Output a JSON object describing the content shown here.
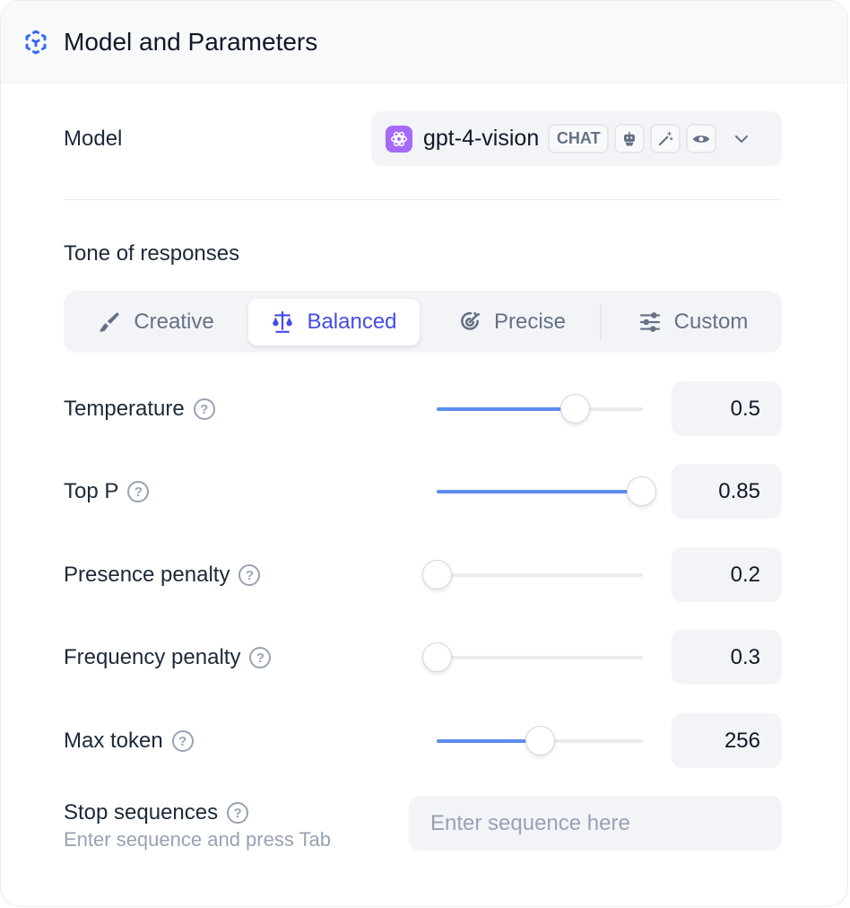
{
  "header": {
    "title": "Model and Parameters",
    "icon": "cube-dashed-icon",
    "accent": "#2f6bf5"
  },
  "model": {
    "label": "Model",
    "name": "gpt-4-vision",
    "type_badge": "CHAT",
    "capabilities": [
      "robot-icon",
      "magic-wand-icon",
      "eye-icon"
    ],
    "logo_color": "#a56af7"
  },
  "tone": {
    "label": "Tone of responses",
    "options": [
      {
        "label": "Creative",
        "icon": "brush-icon"
      },
      {
        "label": "Balanced",
        "icon": "scale-icon"
      },
      {
        "label": "Precise",
        "icon": "target-icon"
      },
      {
        "label": "Custom",
        "icon": "sliders-icon"
      }
    ],
    "selected": "Balanced"
  },
  "params": [
    {
      "label": "Temperature",
      "value": "0.5",
      "slider_fraction": 0.67
    },
    {
      "label": "Top P",
      "value": "0.85",
      "slider_fraction": 0.99
    },
    {
      "label": "Presence penalty",
      "value": "0.2",
      "slider_fraction": 0
    },
    {
      "label": "Frequency penalty",
      "value": "0.3",
      "slider_fraction": 0
    },
    {
      "label": "Max token",
      "value": "256",
      "slider_fraction": 0.5
    }
  ],
  "stop": {
    "label": "Stop sequences",
    "hint": "Enter sequence and press Tab",
    "placeholder": "Enter sequence here"
  }
}
